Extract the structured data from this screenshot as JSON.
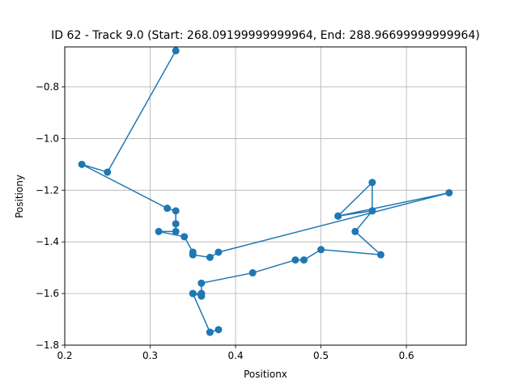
{
  "chart_data": {
    "type": "line",
    "title": "ID 62 - Track 9.0 (Start: 268.09199999999964, End: 288.96699999999964)",
    "xlabel": "Positionx",
    "ylabel": "Positiony",
    "xlim": [
      0.2,
      0.67
    ],
    "ylim": [
      -1.8,
      -0.645
    ],
    "grid": true,
    "xticks": [
      0.2,
      0.3,
      0.4,
      0.5,
      0.6
    ],
    "xtick_labels": [
      "0.2",
      "0.3",
      "0.4",
      "0.5",
      "0.6"
    ],
    "yticks": [
      -1.8,
      -1.6,
      -1.4,
      -1.2,
      -1.0,
      -0.8
    ],
    "ytick_labels": [
      "−1.8",
      "−1.6",
      "−1.4",
      "−1.2",
      "−1.0",
      "−0.8"
    ],
    "series": [
      {
        "color": "#1f77b4",
        "x": [
          0.33,
          0.25,
          0.22,
          0.32,
          0.33,
          0.33,
          0.33,
          0.31,
          0.34,
          0.35,
          0.35,
          0.37,
          0.38,
          0.65,
          0.52,
          0.56,
          0.56,
          0.52,
          0.56,
          0.54,
          0.57,
          0.5,
          0.48,
          0.47,
          0.42,
          0.36,
          0.36,
          0.36,
          0.35,
          0.36,
          0.35,
          0.37,
          0.38,
          0.37
        ],
        "y": [
          -0.66,
          -1.13,
          -1.1,
          -1.27,
          -1.28,
          -1.33,
          -1.36,
          -1.36,
          -1.38,
          -1.44,
          -1.45,
          -1.46,
          -1.44,
          -1.21,
          -1.3,
          -1.17,
          -1.28,
          -1.3,
          -1.28,
          -1.36,
          -1.45,
          -1.43,
          -1.47,
          -1.47,
          -1.52,
          -1.56,
          -1.6,
          -1.61,
          -1.6,
          -1.6,
          -1.6,
          -1.75,
          -1.74,
          -1.75
        ]
      }
    ]
  }
}
